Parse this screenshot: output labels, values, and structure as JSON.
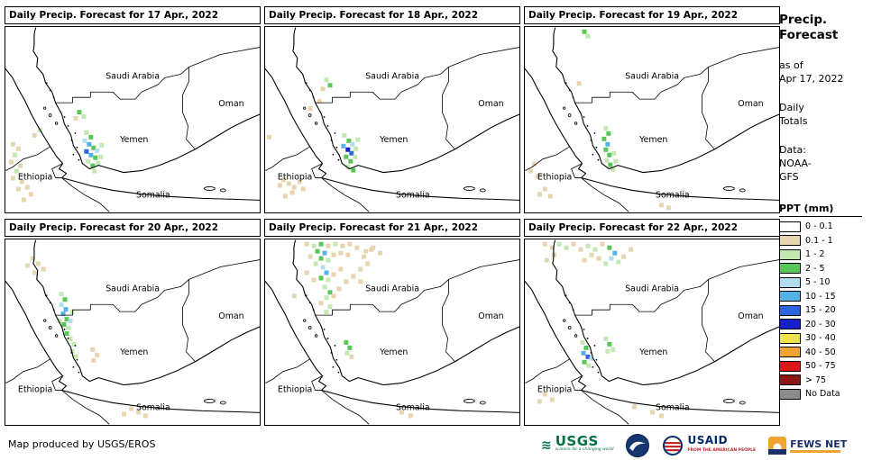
{
  "panels": [
    {
      "title": "Daily Precip. Forecast for 17 Apr., 2022",
      "blobs": [
        [
          80,
          92,
          "g2"
        ],
        [
          85,
          97,
          "g1"
        ],
        [
          76,
          99,
          "t"
        ],
        [
          36,
          112,
          "g1"
        ],
        [
          30,
          118,
          "t"
        ],
        [
          88,
          115,
          "g1"
        ],
        [
          93,
          120,
          "g2"
        ],
        [
          86,
          124,
          "b1"
        ],
        [
          91,
          128,
          "b2"
        ],
        [
          96,
          132,
          "g2"
        ],
        [
          88,
          136,
          "b3"
        ],
        [
          93,
          140,
          "b2"
        ],
        [
          98,
          143,
          "g2"
        ],
        [
          90,
          147,
          "g1"
        ],
        [
          95,
          152,
          "g2"
        ],
        [
          101,
          149,
          "g1"
        ],
        [
          104,
          142,
          "g1"
        ],
        [
          100,
          135,
          "b1"
        ],
        [
          105,
          129,
          "g1"
        ],
        [
          97,
          158,
          "g1"
        ],
        [
          6,
          128,
          "t"
        ],
        [
          12,
          133,
          "t"
        ],
        [
          8,
          140,
          "g1"
        ],
        [
          4,
          148,
          "t"
        ],
        [
          14,
          152,
          "t"
        ],
        [
          10,
          158,
          "g1"
        ],
        [
          6,
          166,
          "t"
        ],
        [
          16,
          170,
          "t"
        ],
        [
          22,
          176,
          "t"
        ],
        [
          12,
          178,
          "t"
        ],
        [
          26,
          184,
          "t"
        ],
        [
          18,
          190,
          "t"
        ]
      ]
    },
    {
      "title": "Daily Precip. Forecast for 18 Apr., 2022",
      "blobs": [
        [
          66,
          56,
          "g1"
        ],
        [
          70,
          62,
          "g2"
        ],
        [
          62,
          66,
          "t"
        ],
        [
          58,
          80,
          "t"
        ],
        [
          48,
          88,
          "t"
        ],
        [
          86,
          118,
          "g1"
        ],
        [
          91,
          124,
          "g2"
        ],
        [
          85,
          130,
          "b2"
        ],
        [
          90,
          134,
          "b4"
        ],
        [
          94,
          138,
          "b3"
        ],
        [
          88,
          142,
          "g2"
        ],
        [
          93,
          147,
          "g2"
        ],
        [
          98,
          142,
          "g1"
        ],
        [
          99,
          133,
          "g1"
        ],
        [
          95,
          128,
          "b1"
        ],
        [
          101,
          123,
          "g1"
        ],
        [
          90,
          153,
          "g1"
        ],
        [
          96,
          157,
          "g2"
        ],
        [
          2,
          120,
          "t"
        ],
        [
          14,
          174,
          "t"
        ],
        [
          18,
          168,
          "t"
        ],
        [
          24,
          172,
          "t"
        ],
        [
          30,
          176,
          "t"
        ],
        [
          36,
          170,
          "t"
        ],
        [
          28,
          182,
          "t"
        ],
        [
          20,
          186,
          "t"
        ],
        [
          40,
          178,
          "t"
        ]
      ]
    },
    {
      "title": "Daily Precip. Forecast for 19 Apr., 2022",
      "blobs": [
        [
          64,
          2,
          "g2"
        ],
        [
          68,
          7,
          "g1"
        ],
        [
          58,
          60,
          "t"
        ],
        [
          88,
          110,
          "g1"
        ],
        [
          91,
          116,
          "g2"
        ],
        [
          86,
          122,
          "g2"
        ],
        [
          90,
          128,
          "b2"
        ],
        [
          88,
          134,
          "g2"
        ],
        [
          92,
          140,
          "g2"
        ],
        [
          89,
          146,
          "g1"
        ],
        [
          93,
          151,
          "g2"
        ],
        [
          96,
          156,
          "g1"
        ],
        [
          99,
          147,
          "g1"
        ],
        [
          97,
          138,
          "g1"
        ],
        [
          8,
          150,
          "t"
        ],
        [
          4,
          158,
          "t"
        ],
        [
          12,
          164,
          "t"
        ],
        [
          20,
          178,
          "t"
        ],
        [
          14,
          184,
          "t"
        ],
        [
          26,
          186,
          "t"
        ],
        [
          150,
          196,
          "t"
        ],
        [
          158,
          199,
          "t"
        ]
      ]
    },
    {
      "title": "Daily Precip. Forecast for 20 Apr., 2022",
      "blobs": [
        [
          28,
          18,
          "t"
        ],
        [
          34,
          24,
          "t"
        ],
        [
          22,
          26,
          "t"
        ],
        [
          40,
          30,
          "t"
        ],
        [
          30,
          34,
          "t"
        ],
        [
          60,
          58,
          "g1"
        ],
        [
          64,
          64,
          "g2"
        ],
        [
          60,
          70,
          "b1"
        ],
        [
          65,
          75,
          "b2"
        ],
        [
          62,
          80,
          "b2"
        ],
        [
          66,
          86,
          "g2"
        ],
        [
          63,
          92,
          "g2"
        ],
        [
          68,
          96,
          "g1"
        ],
        [
          70,
          88,
          "b1"
        ],
        [
          72,
          78,
          "g1"
        ],
        [
          58,
          88,
          "g1"
        ],
        [
          66,
          102,
          "g2"
        ],
        [
          70,
          108,
          "g1"
        ],
        [
          74,
          114,
          "g1"
        ],
        [
          72,
          122,
          "g1"
        ],
        [
          76,
          128,
          "g1"
        ],
        [
          95,
          120,
          "t"
        ],
        [
          100,
          126,
          "t"
        ],
        [
          96,
          132,
          "t"
        ],
        [
          138,
          186,
          "t"
        ],
        [
          146,
          190,
          "t"
        ],
        [
          130,
          192,
          "t"
        ],
        [
          154,
          194,
          "t"
        ]
      ]
    },
    {
      "title": "Daily Precip. Forecast for 21 Apr., 2022",
      "blobs": [
        [
          44,
          2,
          "t"
        ],
        [
          52,
          4,
          "g1"
        ],
        [
          60,
          2,
          "g2"
        ],
        [
          68,
          4,
          "t"
        ],
        [
          76,
          2,
          "g1"
        ],
        [
          84,
          4,
          "t"
        ],
        [
          92,
          2,
          "t"
        ],
        [
          100,
          6,
          "t"
        ],
        [
          110,
          10,
          "t"
        ],
        [
          118,
          6,
          "t"
        ],
        [
          126,
          12,
          "t"
        ],
        [
          48,
          16,
          "t"
        ],
        [
          56,
          10,
          "g2"
        ],
        [
          64,
          12,
          "b2"
        ],
        [
          60,
          18,
          "g2"
        ],
        [
          68,
          20,
          "g1"
        ],
        [
          74,
          14,
          "t"
        ],
        [
          82,
          12,
          "t"
        ],
        [
          90,
          14,
          "t"
        ],
        [
          108,
          16,
          "t"
        ],
        [
          116,
          8,
          "t"
        ],
        [
          54,
          24,
          "g1"
        ],
        [
          62,
          28,
          "b1"
        ],
        [
          66,
          34,
          "b2"
        ],
        [
          60,
          40,
          "g2"
        ],
        [
          68,
          42,
          "g1"
        ],
        [
          74,
          36,
          "t"
        ],
        [
          82,
          30,
          "t"
        ],
        [
          44,
          34,
          "t"
        ],
        [
          104,
          30,
          "t"
        ],
        [
          112,
          24,
          "t"
        ],
        [
          52,
          42,
          "t"
        ],
        [
          64,
          50,
          "g1"
        ],
        [
          70,
          56,
          "g2"
        ],
        [
          66,
          62,
          "g1"
        ],
        [
          74,
          60,
          "t"
        ],
        [
          80,
          52,
          "t"
        ],
        [
          88,
          44,
          "t"
        ],
        [
          96,
          38,
          "t"
        ],
        [
          104,
          44,
          "t"
        ],
        [
          60,
          68,
          "t"
        ],
        [
          70,
          72,
          "g1"
        ],
        [
          66,
          78,
          "g1"
        ],
        [
          30,
          60,
          "t"
        ],
        [
          88,
          112,
          "g2"
        ],
        [
          92,
          118,
          "g2"
        ],
        [
          89,
          124,
          "g1"
        ],
        [
          94,
          128,
          "t"
        ],
        [
          150,
          190,
          "t"
        ],
        [
          160,
          194,
          "t"
        ]
      ]
    },
    {
      "title": "Daily Precip. Forecast for 22 Apr., 2022",
      "blobs": [
        [
          20,
          2,
          "t"
        ],
        [
          28,
          6,
          "t"
        ],
        [
          36,
          2,
          "g1"
        ],
        [
          44,
          6,
          "g1"
        ],
        [
          52,
          2,
          "t"
        ],
        [
          60,
          8,
          "t"
        ],
        [
          68,
          4,
          "g1"
        ],
        [
          76,
          8,
          "g1"
        ],
        [
          84,
          2,
          "t"
        ],
        [
          92,
          6,
          "g2"
        ],
        [
          98,
          12,
          "b2"
        ],
        [
          94,
          18,
          "b1"
        ],
        [
          88,
          24,
          "g1"
        ],
        [
          80,
          18,
          "t"
        ],
        [
          72,
          14,
          "t"
        ],
        [
          64,
          20,
          "t"
        ],
        [
          102,
          22,
          "g1"
        ],
        [
          108,
          16,
          "t"
        ],
        [
          116,
          8,
          "t"
        ],
        [
          30,
          14,
          "t"
        ],
        [
          22,
          20,
          "t"
        ],
        [
          62,
          112,
          "g1"
        ],
        [
          66,
          118,
          "g2"
        ],
        [
          63,
          124,
          "b2"
        ],
        [
          68,
          128,
          "b3"
        ],
        [
          64,
          134,
          "g2"
        ],
        [
          69,
          138,
          "g1"
        ],
        [
          72,
          130,
          "b1"
        ],
        [
          88,
          108,
          "g1"
        ],
        [
          92,
          114,
          "g2"
        ],
        [
          96,
          120,
          "g1"
        ],
        [
          90,
          122,
          "g1"
        ],
        [
          20,
          170,
          "t"
        ],
        [
          28,
          176,
          "t"
        ],
        [
          14,
          178,
          "t"
        ],
        [
          120,
          184,
          "t"
        ],
        [
          140,
          190,
          "t"
        ],
        [
          150,
          194,
          "t"
        ]
      ]
    }
  ],
  "map_labels": [
    "Saudi Arabia",
    "Oman",
    "Yemen",
    "Ethiopia",
    "Somalia"
  ],
  "palette": {
    "w": "#ffffff",
    "t": "#e6d5ae",
    "g1": "#c3e8b2",
    "g2": "#57c857",
    "b1": "#b2dcf0",
    "b2": "#55b2e8",
    "b3": "#2a64e0",
    "b4": "#1420c8",
    "y": "#f2e14e",
    "o": "#f2a432",
    "r": "#dc1616",
    "dr": "#8c1414",
    "nd": "#8c8c8c"
  },
  "sidebar": {
    "title_line1": "Precip.",
    "title_line2": "Forecast",
    "as_of_line1": "as of",
    "as_of_line2": "Apr 17, 2022",
    "totals_line1": "Daily",
    "totals_line2": "Totals",
    "data_label": "Data:",
    "data_line2": "NOAA-",
    "data_line3": "GFS"
  },
  "legend": {
    "title": "PPT (mm)",
    "entries": [
      {
        "label": "0 - 0.1",
        "color": "#ffffff"
      },
      {
        "label": "0.1 - 1",
        "color": "#e6d5ae"
      },
      {
        "label": "1 - 2",
        "color": "#c3e8b2"
      },
      {
        "label": "2 - 5",
        "color": "#57c857"
      },
      {
        "label": "5 - 10",
        "color": "#b2dcf0"
      },
      {
        "label": "10 - 15",
        "color": "#55b2e8"
      },
      {
        "label": "15 - 20",
        "color": "#2a64e0"
      },
      {
        "label": "20 - 30",
        "color": "#1420c8"
      },
      {
        "label": "30 - 40",
        "color": "#f2e14e"
      },
      {
        "label": "40 - 50",
        "color": "#f2a432"
      },
      {
        "label": "50 - 75",
        "color": "#dc1616"
      },
      {
        "label": "> 75",
        "color": "#8c1414"
      },
      {
        "label": "No Data",
        "color": "#8c8c8c"
      }
    ]
  },
  "footer": {
    "credit": "Map produced by USGS/EROS",
    "usgs": {
      "name": "USGS",
      "tagline": "science for a changing world"
    },
    "noaa": {
      "name": "NOAA"
    },
    "usaid": {
      "name": "USAID",
      "tagline": "FROM THE AMERICAN PEOPLE"
    },
    "fews": {
      "name": "FEWS NET"
    }
  }
}
